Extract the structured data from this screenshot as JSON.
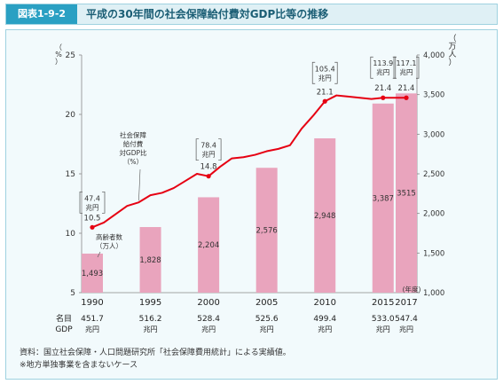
{
  "header": {
    "figure_label": "図表1-9-2",
    "title": "平成の30年間の社会保障給付費対GDP比等の推移"
  },
  "colors": {
    "accent": "#2aa0c3",
    "bar": "#e9a4bd",
    "line": "#e60012",
    "panel": "#f2fafc"
  },
  "chart_data": {
    "type": "bar",
    "categories": [
      "1990",
      "1995",
      "2000",
      "2005",
      "2010",
      "2015",
      "2017"
    ],
    "x_unit": "(年度)",
    "left_axis": {
      "unit": "（%）",
      "ticks": [
        "5",
        "10",
        "15",
        "20",
        "25"
      ],
      "range": [
        5,
        25
      ]
    },
    "right_axis": {
      "unit": "（万人）",
      "ticks": [
        "1,000",
        "1,500",
        "2,000",
        "2,500",
        "3,000",
        "3,500",
        "4,000"
      ],
      "range": [
        1000,
        4000
      ]
    },
    "bar_series": {
      "name": "高齢者数（万人）",
      "values": [
        1493,
        1828,
        2204,
        2576,
        2948,
        3387,
        3515
      ],
      "labels": [
        "1,493",
        "1,828",
        "2,204",
        "2,576",
        "2,948",
        "3,387",
        "3515"
      ]
    },
    "line_series": {
      "name": "社会保障給付費対GDP比（%）",
      "name_lines": [
        "社会保障",
        "給付費",
        "対GDP比",
        "（%）"
      ],
      "points": [
        {
          "x": 1990,
          "y": 10.5
        },
        {
          "x": 1991,
          "y": 10.9
        },
        {
          "x": 1992,
          "y": 11.6
        },
        {
          "x": 1993,
          "y": 12.3
        },
        {
          "x": 1994,
          "y": 12.6
        },
        {
          "x": 1995,
          "y": 13.2
        },
        {
          "x": 1996,
          "y": 13.4
        },
        {
          "x": 1997,
          "y": 13.8
        },
        {
          "x": 1998,
          "y": 14.4
        },
        {
          "x": 1999,
          "y": 15.0
        },
        {
          "x": 2000,
          "y": 14.8
        },
        {
          "x": 2001,
          "y": 15.6
        },
        {
          "x": 2002,
          "y": 16.3
        },
        {
          "x": 2003,
          "y": 16.4
        },
        {
          "x": 2004,
          "y": 16.6
        },
        {
          "x": 2005,
          "y": 16.9
        },
        {
          "x": 2006,
          "y": 17.1
        },
        {
          "x": 2007,
          "y": 17.4
        },
        {
          "x": 2008,
          "y": 18.8
        },
        {
          "x": 2009,
          "y": 19.9
        },
        {
          "x": 2010,
          "y": 21.1
        },
        {
          "x": 2011,
          "y": 21.6
        },
        {
          "x": 2012,
          "y": 21.5
        },
        {
          "x": 2013,
          "y": 21.4
        },
        {
          "x": 2014,
          "y": 21.3
        },
        {
          "x": 2015,
          "y": 21.4
        },
        {
          "x": 2016,
          "y": 21.4
        },
        {
          "x": 2017,
          "y": 21.4
        }
      ],
      "value_labels": [
        {
          "x": 1990,
          "text": "10.5"
        },
        {
          "x": 2000,
          "text": "14.8"
        },
        {
          "x": 2010,
          "text": "21.1"
        },
        {
          "x": 2015,
          "text": "21.4"
        },
        {
          "x": 2017,
          "text": "21.4"
        }
      ],
      "callouts": [
        {
          "x": 1990,
          "lines": [
            "47.4",
            "兆円"
          ]
        },
        {
          "x": 2000,
          "lines": [
            "78.4",
            "兆円"
          ]
        },
        {
          "x": 2010,
          "lines": [
            "105.4",
            "兆円"
          ]
        },
        {
          "x": 2015,
          "lines": [
            "113.9",
            "兆円"
          ]
        },
        {
          "x": 2017,
          "lines": [
            "117.1",
            "兆円"
          ]
        }
      ]
    },
    "gdp_row": {
      "label": [
        "名目",
        "GDP"
      ],
      "values": [
        "451.7",
        "516.2",
        "528.4",
        "525.6",
        "499.4",
        "533.0",
        "547.4"
      ],
      "unit": "兆円"
    }
  },
  "notes": [
    "資料：国立社会保障・人口問題研究所「社会保障費用統計」による実績値。",
    "※地方単独事業を含まないケース"
  ]
}
